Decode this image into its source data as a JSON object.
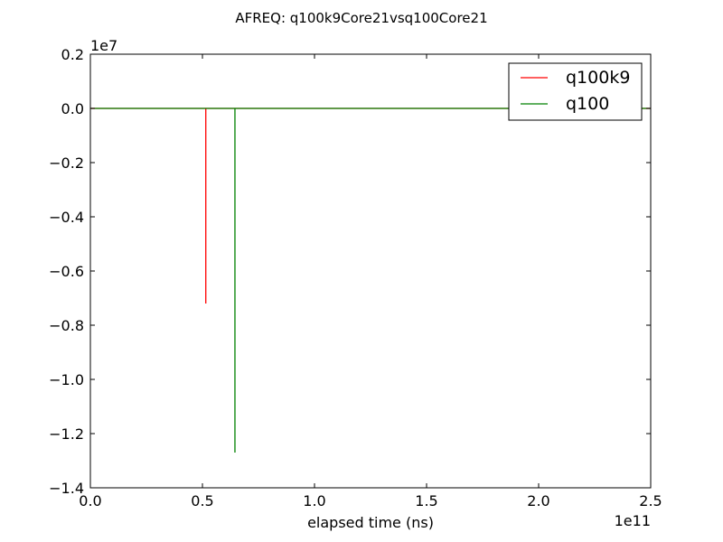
{
  "chart_data": {
    "type": "line",
    "title": "AFREQ: q100k9Core21vsq100Core21",
    "xlabel": "elapsed time (ns)",
    "ylabel": "",
    "x_multiplier_label": "1e11",
    "y_multiplier_label": "1e7",
    "xlim": [
      0,
      2.5
    ],
    "ylim": [
      -1.4,
      0.2
    ],
    "x_ticks": [
      0.0,
      0.5,
      1.0,
      1.5,
      2.0,
      2.5
    ],
    "x_tick_labels": [
      "0.0",
      "0.5",
      "1.0",
      "1.5",
      "2.0",
      "2.5"
    ],
    "y_ticks": [
      0.2,
      0.0,
      -0.2,
      -0.4,
      -0.6,
      -0.8,
      -1.0,
      -1.2,
      -1.4
    ],
    "y_tick_labels": [
      "0.2",
      "0.0",
      "−0.2",
      "−0.4",
      "−0.6",
      "−0.8",
      "−1.0",
      "−1.2",
      "−1.4"
    ],
    "grid": false,
    "legend_position": "top-right",
    "series": [
      {
        "name": "q100k9",
        "color": "#ff0000",
        "points": [
          [
            0.0,
            0.0
          ],
          [
            0.515,
            0.0
          ],
          [
            0.515,
            -0.72
          ],
          [
            0.515,
            0.0
          ],
          [
            2.5,
            0.0
          ]
        ]
      },
      {
        "name": "q100",
        "color": "#008000",
        "points": [
          [
            0.0,
            0.0
          ],
          [
            0.645,
            0.0
          ],
          [
            0.645,
            -1.27
          ],
          [
            0.645,
            0.0
          ],
          [
            2.5,
            0.0
          ]
        ]
      }
    ]
  }
}
